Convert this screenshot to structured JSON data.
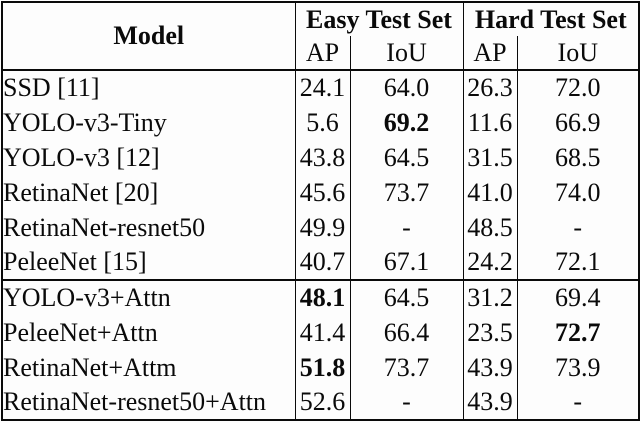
{
  "page": {
    "background_color": "#fdfdfd",
    "border_color": "#0a0a0a",
    "text_color": "#0a0a0a"
  },
  "table": {
    "header": {
      "model_label": "Model",
      "group_labels": [
        "Easy Test Set",
        "Hard Test Set"
      ],
      "sub_labels": [
        "AP",
        "IoU",
        "AP",
        "IoU"
      ]
    },
    "columns": [
      "Model",
      "Easy AP",
      "Easy IoU",
      "Hard AP",
      "Hard IoU"
    ],
    "rows": [
      {
        "model": "SSD [11]",
        "cells": [
          "24.1",
          "64.0",
          "26.3",
          "72.0"
        ],
        "bold": [],
        "section_start": false
      },
      {
        "model": "YOLO-v3-Tiny",
        "cells": [
          "5.6",
          "69.2",
          "11.6",
          "66.9"
        ],
        "bold": [
          1
        ],
        "section_start": false
      },
      {
        "model": "YOLO-v3 [12]",
        "cells": [
          "43.8",
          "64.5",
          "31.5",
          "68.5"
        ],
        "bold": [],
        "section_start": false
      },
      {
        "model": "RetinaNet [20]",
        "cells": [
          "45.6",
          "73.7",
          "41.0",
          "74.0"
        ],
        "bold": [],
        "section_start": false
      },
      {
        "model": "RetinaNet-resnet50",
        "cells": [
          "49.9",
          "-",
          "48.5",
          "-"
        ],
        "bold": [],
        "section_start": false
      },
      {
        "model": "PeleeNet [15]",
        "cells": [
          "40.7",
          "67.1",
          "24.2",
          "72.1"
        ],
        "bold": [],
        "section_start": false
      },
      {
        "model": "YOLO-v3+Attn",
        "cells": [
          "48.1",
          "64.5",
          "31.2",
          "69.4"
        ],
        "bold": [
          0
        ],
        "section_start": true
      },
      {
        "model": "PeleeNet+Attn",
        "cells": [
          "41.4",
          "66.4",
          "23.5",
          "72.7"
        ],
        "bold": [
          3
        ],
        "section_start": false
      },
      {
        "model": "RetinaNet+Attm",
        "cells": [
          "51.8",
          "73.7",
          "43.9",
          "73.9"
        ],
        "bold": [
          0
        ],
        "section_start": false
      },
      {
        "model": "RetinaNet-resnet50+Attn",
        "cells": [
          "52.6",
          "-",
          "43.9",
          "-"
        ],
        "bold": [],
        "section_start": false
      }
    ]
  }
}
